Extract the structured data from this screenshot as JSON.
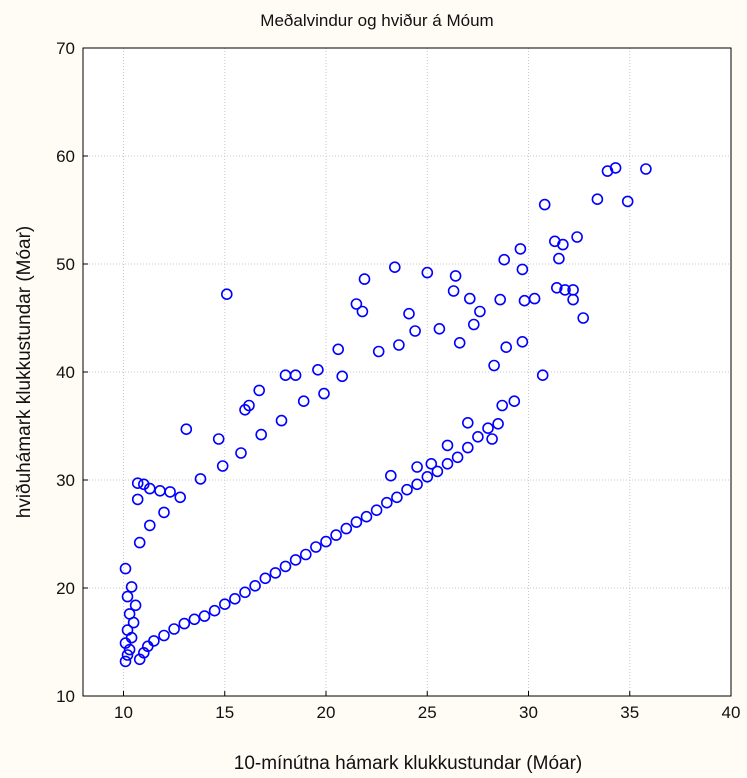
{
  "chart_data": {
    "type": "scatter",
    "title": "Meðalvindur og hviður á Móum",
    "xlabel": "10-mínútna hámark klukkustundar (Móar)",
    "ylabel": "hviðuhámark klukkustundar (Móar)",
    "xlim": [
      8,
      40
    ],
    "ylim": [
      10,
      70
    ],
    "xticks": [
      10,
      15,
      20,
      25,
      30,
      35,
      40
    ],
    "yticks": [
      10,
      20,
      30,
      40,
      50,
      60,
      70
    ],
    "grid": true,
    "marker": "open-circle",
    "marker_color": "#0000ff",
    "background": "#fffcf5",
    "plot_background": "#ffffff",
    "points": [
      [
        10.1,
        13.2
      ],
      [
        10.2,
        13.8
      ],
      [
        10.3,
        14.3
      ],
      [
        10.1,
        14.9
      ],
      [
        10.4,
        15.4
      ],
      [
        10.2,
        16.1
      ],
      [
        10.5,
        16.8
      ],
      [
        10.3,
        17.6
      ],
      [
        10.6,
        18.4
      ],
      [
        10.2,
        19.2
      ],
      [
        10.4,
        20.1
      ],
      [
        10.1,
        21.8
      ],
      [
        10.8,
        13.4
      ],
      [
        11.0,
        14.0
      ],
      [
        11.2,
        14.6
      ],
      [
        11.5,
        15.1
      ],
      [
        12.0,
        15.6
      ],
      [
        12.5,
        16.2
      ],
      [
        13.0,
        16.7
      ],
      [
        13.5,
        17.1
      ],
      [
        14.0,
        17.4
      ],
      [
        14.5,
        17.9
      ],
      [
        15.0,
        18.5
      ],
      [
        15.5,
        19.0
      ],
      [
        16.0,
        19.6
      ],
      [
        16.5,
        20.2
      ],
      [
        17.0,
        20.9
      ],
      [
        17.5,
        21.4
      ],
      [
        18.0,
        22.0
      ],
      [
        18.5,
        22.6
      ],
      [
        19.0,
        23.1
      ],
      [
        19.5,
        23.8
      ],
      [
        20.0,
        24.3
      ],
      [
        20.5,
        24.9
      ],
      [
        21.0,
        25.5
      ],
      [
        21.5,
        26.1
      ],
      [
        22.0,
        26.6
      ],
      [
        22.5,
        27.2
      ],
      [
        23.0,
        27.9
      ],
      [
        23.5,
        28.4
      ],
      [
        24.0,
        29.1
      ],
      [
        24.5,
        29.6
      ],
      [
        25.0,
        30.3
      ],
      [
        25.5,
        30.8
      ],
      [
        26.0,
        31.5
      ],
      [
        26.5,
        32.1
      ],
      [
        27.0,
        33.0
      ],
      [
        27.5,
        34.0
      ],
      [
        28.0,
        34.8
      ],
      [
        28.5,
        35.2
      ],
      [
        10.7,
        29.7
      ],
      [
        11.0,
        29.6
      ],
      [
        10.7,
        28.2
      ],
      [
        11.3,
        29.2
      ],
      [
        11.8,
        29.0
      ],
      [
        12.3,
        28.9
      ],
      [
        13.1,
        34.7
      ],
      [
        15.1,
        47.2
      ],
      [
        14.7,
        33.8
      ],
      [
        16.0,
        36.5
      ],
      [
        16.2,
        36.9
      ],
      [
        16.7,
        38.3
      ],
      [
        18.0,
        39.7
      ],
      [
        18.5,
        39.7
      ],
      [
        19.6,
        40.2
      ],
      [
        20.6,
        42.1
      ],
      [
        21.8,
        45.6
      ],
      [
        21.9,
        48.6
      ],
      [
        21.5,
        46.3
      ],
      [
        23.4,
        49.7
      ],
      [
        24.1,
        45.4
      ],
      [
        25.0,
        49.2
      ],
      [
        26.4,
        48.9
      ],
      [
        26.3,
        47.5
      ],
      [
        27.1,
        46.8
      ],
      [
        27.6,
        45.6
      ],
      [
        28.6,
        46.7
      ],
      [
        28.8,
        50.4
      ],
      [
        29.6,
        51.4
      ],
      [
        29.7,
        49.5
      ],
      [
        29.8,
        46.6
      ],
      [
        30.3,
        46.8
      ],
      [
        30.8,
        55.5
      ],
      [
        31.3,
        52.1
      ],
      [
        31.7,
        51.8
      ],
      [
        31.5,
        50.5
      ],
      [
        31.4,
        47.8
      ],
      [
        31.8,
        47.6
      ],
      [
        32.2,
        47.6
      ],
      [
        32.2,
        46.7
      ],
      [
        32.4,
        52.5
      ],
      [
        32.7,
        45.0
      ],
      [
        33.4,
        56.0
      ],
      [
        33.9,
        58.6
      ],
      [
        34.3,
        58.9
      ],
      [
        34.9,
        55.8
      ],
      [
        35.8,
        58.8
      ],
      [
        29.7,
        42.8
      ],
      [
        30.7,
        39.7
      ],
      [
        29.3,
        37.3
      ],
      [
        28.7,
        36.9
      ],
      [
        28.2,
        33.8
      ],
      [
        27.0,
        35.3
      ],
      [
        26.0,
        33.2
      ],
      [
        25.2,
        31.5
      ],
      [
        24.5,
        31.2
      ],
      [
        23.2,
        30.4
      ],
      [
        26.6,
        42.7
      ],
      [
        27.3,
        44.4
      ],
      [
        28.3,
        40.6
      ],
      [
        28.9,
        42.3
      ],
      [
        25.6,
        44.0
      ],
      [
        24.4,
        43.8
      ],
      [
        23.6,
        42.5
      ],
      [
        22.6,
        41.9
      ],
      [
        20.8,
        39.6
      ],
      [
        19.9,
        38.0
      ],
      [
        18.9,
        37.3
      ],
      [
        17.8,
        35.5
      ],
      [
        16.8,
        34.2
      ],
      [
        15.8,
        32.5
      ],
      [
        14.9,
        31.3
      ],
      [
        13.8,
        30.1
      ],
      [
        12.8,
        28.4
      ],
      [
        12.0,
        27.0
      ],
      [
        11.3,
        25.8
      ],
      [
        10.8,
        24.2
      ]
    ]
  }
}
